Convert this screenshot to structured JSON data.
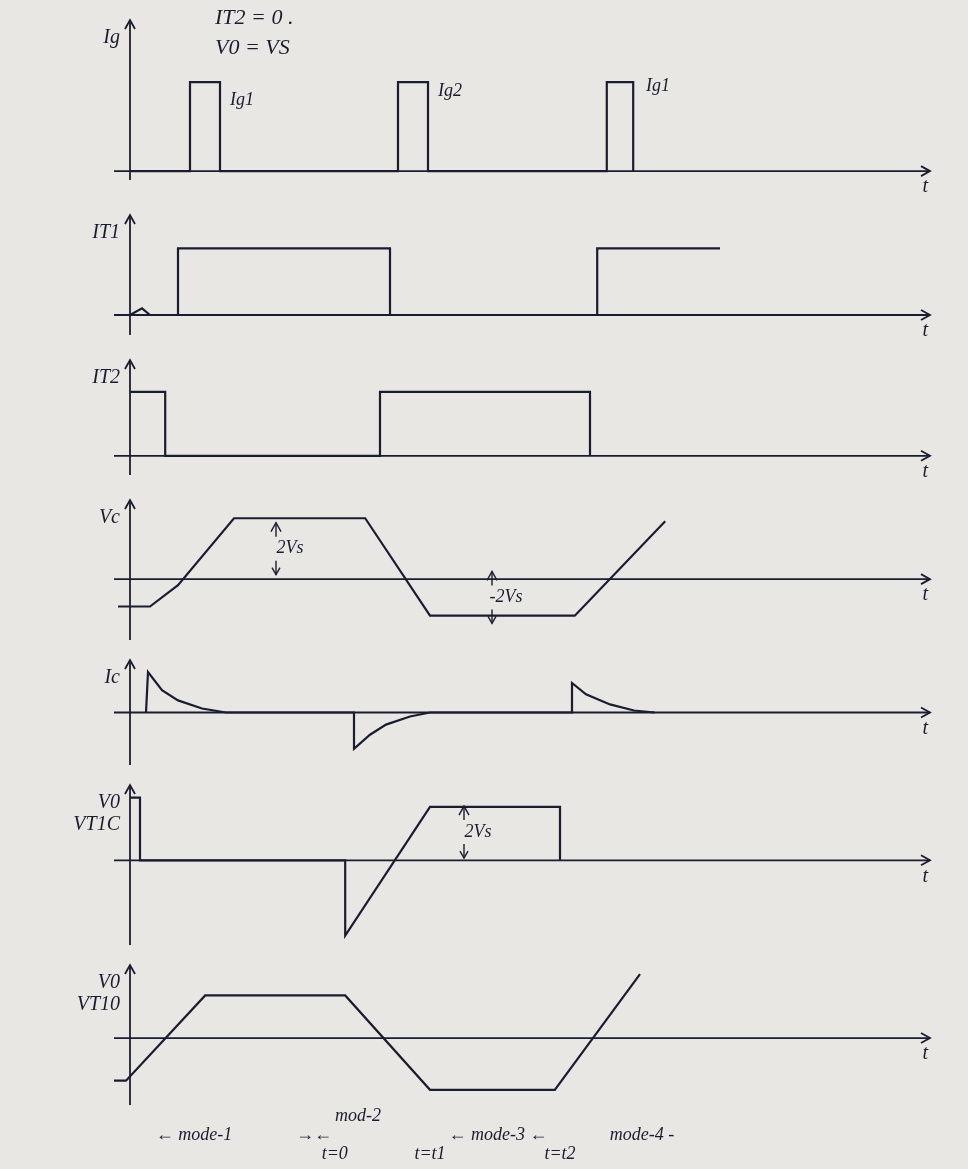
{
  "header": [
    "IT2 = 0 .",
    "V0 = VS"
  ],
  "chart_data": [
    {
      "type": "line",
      "y_label": [
        "Ig"
      ],
      "x_label": "t",
      "xlim": [
        -2,
        100
      ],
      "ylim": [
        -0.1,
        1.7
      ],
      "tick_labels": false,
      "grid": false,
      "color": "#1c1c30",
      "line_style": "solid",
      "x": [
        0,
        7.5,
        7.5,
        11.25,
        11.25,
        33.5,
        33.5,
        37.25,
        37.25,
        59.6,
        59.6,
        62.9,
        62.9
      ],
      "values": [
        0,
        0,
        1,
        1,
        0,
        0,
        1,
        1,
        0,
        0,
        1,
        1,
        0
      ],
      "annotations": [
        {
          "text": "Ig1",
          "x": 14,
          "y": 0.8
        },
        {
          "text": "Ig2",
          "x": 40,
          "y": 0.9
        },
        {
          "text": "Ig1",
          "x": 66,
          "y": 0.95
        }
      ]
    },
    {
      "type": "line",
      "y_label": [
        "IT1"
      ],
      "x_label": "t",
      "xlim": [
        -2,
        100
      ],
      "ylim": [
        -0.3,
        1.5
      ],
      "tick_labels": false,
      "grid": false,
      "color": "#1c1c30",
      "line_style": "solid",
      "x": [
        0,
        1.5,
        2.5,
        6,
        6,
        32.5,
        32.5,
        58.4,
        58.4,
        73.75
      ],
      "values": [
        0,
        0.1,
        0,
        0,
        1,
        1,
        0,
        0,
        1,
        1
      ],
      "annotations": []
    },
    {
      "type": "line",
      "y_label": [
        "IT2"
      ],
      "x_label": "t",
      "xlim": [
        -2,
        100
      ],
      "ylim": [
        -0.3,
        1.5
      ],
      "tick_labels": false,
      "grid": false,
      "color": "#1c1c30",
      "line_style": "solid",
      "x": [
        0,
        4.4,
        4.4,
        31.25,
        31.25,
        57.5,
        57.5
      ],
      "values": [
        1,
        1,
        0,
        0,
        1,
        1,
        0
      ],
      "annotations": []
    },
    {
      "type": "line",
      "y_label": [
        "Vc"
      ],
      "x_label": "t",
      "xlim": [
        -2,
        100
      ],
      "ylim": [
        -2,
        2.6
      ],
      "tick_labels": false,
      "grid": false,
      "color": "#1c1c30",
      "line_style": "solid",
      "x": [
        -1.5,
        2.5,
        6,
        13,
        29.4,
        37.5,
        55.6,
        66.9
      ],
      "values": [
        -0.9,
        -0.9,
        -0.2,
        2.0,
        2.0,
        -1.2,
        -1.2,
        1.9
      ],
      "annotations": [
        {
          "text": "2Vs",
          "x": 20,
          "y": 1.0,
          "marker": "dimension"
        },
        {
          "text": "-2Vs",
          "x": 47,
          "y": -0.6,
          "marker": "dimension"
        }
      ]
    },
    {
      "type": "line",
      "y_label": [
        "Ic"
      ],
      "x_label": "t",
      "xlim": [
        -2,
        100
      ],
      "ylim": [
        -1.3,
        1.3
      ],
      "tick_labels": false,
      "grid": false,
      "color": "#1c1c30",
      "line_style": "solid",
      "x": [
        2,
        2.25,
        4,
        6,
        9,
        12,
        28,
        28,
        30,
        32,
        35,
        37.5,
        55.25,
        55.25,
        57,
        60,
        63,
        65.6
      ],
      "values": [
        0,
        1.0,
        0.55,
        0.3,
        0.1,
        0,
        0,
        -0.9,
        -0.55,
        -0.3,
        -0.1,
        0,
        0,
        0.73,
        0.45,
        0.2,
        0.05,
        0
      ],
      "annotations": []
    },
    {
      "type": "line",
      "y_label": [
        "V0",
        "VT1C"
      ],
      "x_label": "t",
      "xlim": [
        -2,
        100
      ],
      "ylim": [
        -2.7,
        2.4
      ],
      "tick_labels": false,
      "grid": false,
      "color": "#1c1c30",
      "line_style": "solid",
      "x": [
        0,
        1.25,
        1.25,
        26.9,
        26.9,
        37.5,
        53.75,
        53.75
      ],
      "values": [
        2,
        2,
        0,
        0,
        -2.4,
        1.7,
        1.7,
        0
      ],
      "annotations": [
        {
          "text": "2Vs",
          "x": 43.5,
          "y": 0.9,
          "marker": "dimension"
        }
      ]
    },
    {
      "type": "line",
      "y_label": [
        "V0",
        "VT10"
      ],
      "x_label": "t",
      "xlim": [
        -2,
        100
      ],
      "ylim": [
        -2.2,
        2.4
      ],
      "tick_labels": false,
      "grid": false,
      "color": "#1c1c30",
      "line_style": "solid",
      "x": [
        -2,
        -0.5,
        9.4,
        26.9,
        37.5,
        53.1,
        63.75
      ],
      "values": [
        -1.4,
        -1.4,
        1.4,
        1.4,
        -1.7,
        -1.7,
        2.1
      ],
      "annotations": []
    }
  ],
  "footer": [
    [
      {
        "text": "mod-2",
        "x": 28.5
      }
    ],
    [
      {
        "text": "← mode-1",
        "x": 8
      },
      {
        "text": "→←",
        "x": 23
      },
      {
        "text": "← mode-3 ←",
        "x": 46
      },
      {
        "text": "mode-4 -",
        "x": 64
      }
    ],
    [
      {
        "text": "t=0",
        "x": 25.6
      },
      {
        "text": "t=t1",
        "x": 37.5
      },
      {
        "text": "t=t2",
        "x": 53.75
      }
    ]
  ]
}
